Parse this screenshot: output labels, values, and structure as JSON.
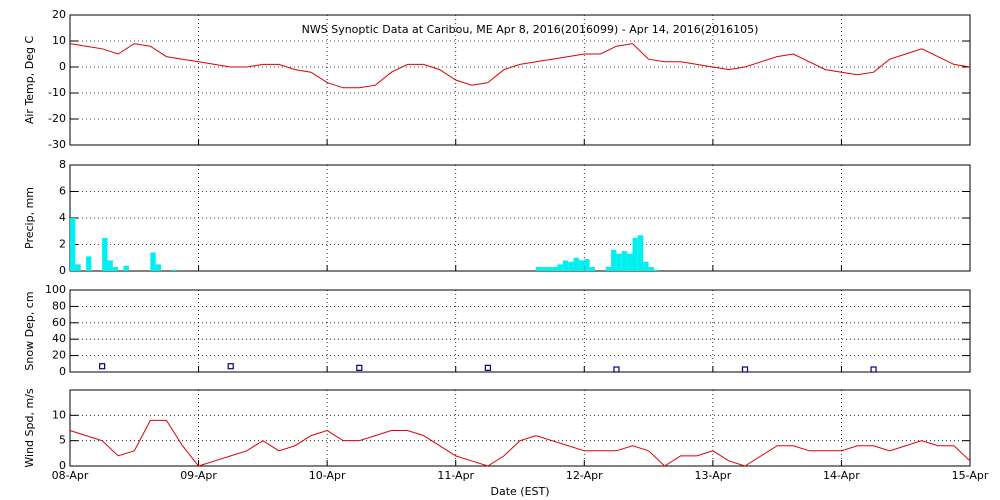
{
  "chart_data": [
    {
      "type": "line",
      "title": "NWS Synoptic Data at Caribou, ME   Apr  8, 2016(2016099) - Apr 14, 2016(2016105)",
      "ylabel": "Air Temp, Deg C",
      "color": "#dd0000",
      "x": [
        0,
        3,
        6,
        9,
        12,
        15,
        18,
        21,
        24,
        27,
        30,
        33,
        36,
        39,
        42,
        45,
        48,
        51,
        54,
        57,
        60,
        63,
        66,
        69,
        72,
        75,
        78,
        81,
        84,
        87,
        90,
        93,
        96,
        99,
        102,
        105,
        108,
        111,
        114,
        117,
        120,
        123,
        126,
        129,
        132,
        135,
        138,
        141,
        144,
        147,
        150,
        153,
        156,
        159,
        162,
        165,
        168
      ],
      "values": [
        9,
        8,
        7,
        5,
        9,
        8,
        4,
        3,
        2,
        1,
        0,
        0,
        1,
        1,
        -1,
        -2,
        -6,
        -8,
        -8,
        -7,
        -2,
        1,
        1,
        -1,
        -5,
        -7,
        -6,
        -1,
        1,
        2,
        3,
        4,
        5,
        5,
        8,
        9,
        3,
        2,
        2,
        1,
        0,
        -1,
        0,
        2,
        4,
        5,
        2,
        -1,
        -2,
        -3,
        -2,
        3,
        5,
        7,
        4,
        1,
        0
      ],
      "xlim": [
        0,
        168
      ],
      "xticks": [
        0,
        24,
        48,
        72,
        96,
        120,
        144,
        168
      ],
      "ylim": [
        -30,
        20
      ],
      "yticks": [
        -30,
        -20,
        -10,
        0,
        10,
        20
      ],
      "grid": true
    },
    {
      "type": "bar",
      "ylabel": "Precip, mm",
      "color": "#00f0f0",
      "x": [
        0,
        1,
        3,
        6,
        7,
        8,
        10,
        15,
        16,
        19,
        87,
        88,
        89,
        90,
        91,
        92,
        93,
        94,
        95,
        96,
        97,
        100,
        101,
        102,
        103,
        104,
        105,
        106,
        107,
        108,
        109
      ],
      "values": [
        4,
        0.5,
        1.1,
        2.5,
        0.8,
        0.3,
        0.4,
        1.4,
        0.5,
        0.1,
        0.3,
        0.3,
        0.3,
        0.3,
        0.5,
        0.8,
        0.7,
        1.0,
        0.8,
        0.9,
        0.3,
        0.3,
        1.6,
        1.3,
        1.5,
        1.3,
        2.5,
        2.7,
        0.7,
        0.3,
        0.1
      ],
      "xlim": [
        0,
        168
      ],
      "xticks": [
        0,
        24,
        48,
        72,
        96,
        120,
        144,
        168
      ],
      "ylim": [
        0,
        8
      ],
      "yticks": [
        0,
        2,
        4,
        6,
        8
      ],
      "grid": true
    },
    {
      "type": "scatter",
      "ylabel": "Snow Dep, cm",
      "color": "#000080",
      "x": [
        6,
        30,
        54,
        78,
        102,
        126,
        150
      ],
      "values": [
        4,
        4,
        2,
        2,
        0,
        0,
        0
      ],
      "xlim": [
        0,
        168
      ],
      "xticks": [
        0,
        24,
        48,
        72,
        96,
        120,
        144,
        168
      ],
      "ylim": [
        0,
        100
      ],
      "yticks": [
        0,
        20,
        40,
        60,
        80,
        100
      ],
      "grid": true
    },
    {
      "type": "line",
      "ylabel": "Wind Spd, m/s",
      "xlabel": "Date (EST)",
      "color": "#dd0000",
      "x": [
        0,
        3,
        6,
        9,
        12,
        15,
        18,
        21,
        24,
        27,
        30,
        33,
        36,
        39,
        42,
        45,
        48,
        51,
        54,
        57,
        60,
        63,
        66,
        69,
        72,
        75,
        78,
        81,
        84,
        87,
        90,
        93,
        96,
        99,
        102,
        105,
        108,
        111,
        114,
        117,
        120,
        123,
        126,
        129,
        132,
        135,
        138,
        141,
        144,
        147,
        150,
        153,
        156,
        159,
        162,
        165,
        168
      ],
      "values": [
        7,
        6,
        5,
        2,
        3,
        9,
        9,
        4,
        0,
        1,
        2,
        3,
        5,
        3,
        4,
        6,
        7,
        5,
        5,
        6,
        7,
        7,
        6,
        4,
        2,
        1,
        0,
        2,
        5,
        6,
        5,
        4,
        3,
        3,
        3,
        4,
        3,
        0,
        2,
        2,
        3,
        1,
        0,
        2,
        4,
        4,
        3,
        3,
        3,
        4,
        4,
        3,
        4,
        5,
        4,
        4,
        1
      ],
      "xlim": [
        0,
        168
      ],
      "xticks": [
        {
          "value": 0,
          "label": "08-Apr"
        },
        {
          "value": 24,
          "label": "09-Apr"
        },
        {
          "value": 48,
          "label": "10-Apr"
        },
        {
          "value": 72,
          "label": "11-Apr"
        },
        {
          "value": 96,
          "label": "12-Apr"
        },
        {
          "value": 120,
          "label": "13-Apr"
        },
        {
          "value": 144,
          "label": "14-Apr"
        },
        {
          "value": 168,
          "label": "15-Apr"
        }
      ],
      "ylim": [
        0,
        15
      ],
      "yticks": [
        0,
        5,
        10
      ],
      "grid": true
    }
  ]
}
